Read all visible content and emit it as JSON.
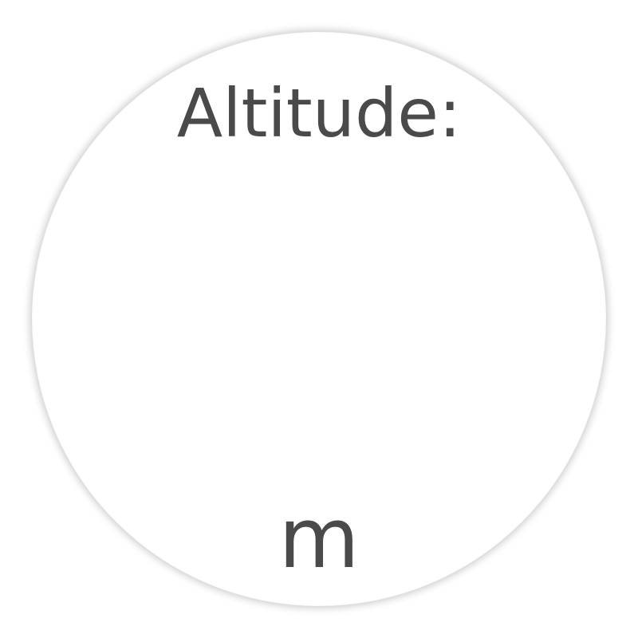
{
  "gauge": {
    "label": "Altitude:",
    "value": "",
    "unit": "m",
    "text_color": "#4a4a4a",
    "background_color": "#ffffff"
  }
}
